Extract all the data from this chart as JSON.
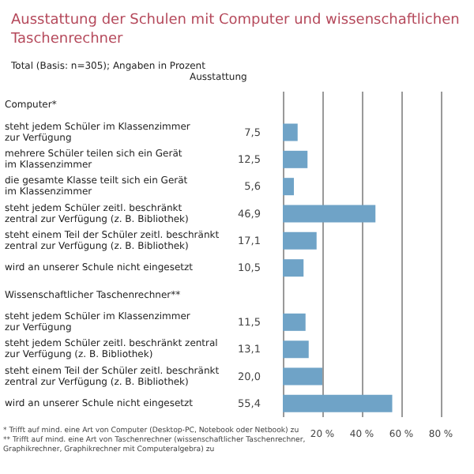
{
  "chart_data": {
    "type": "bar",
    "orientation": "horizontal",
    "title": "Ausstattung der Schulen mit Computer und wissenschaftlichen\nTaschenrechner",
    "subtitle": "Total (Basis: n=305); Angaben in Prozent",
    "categories": [
      "Computer*",
      "steht jedem Schüler im Klassenzimmer\nzur Verfügung",
      "mehrere Schüler teilen sich ein Gerät\nim Klassenzimmer",
      "die gesamte Klasse teilt sich ein Gerät\nim Klassenzimmer",
      "steht jedem Schüler zeitl. beschränkt\nzentral zur Verfügung (z. B. Bibliothek)",
      "steht einem Teil der Schüler zeitl. beschränkt\nzentral zur Verfügung (z. B. Bibliothek)",
      "wird an unserer Schule nicht eingesetzt",
      "Wissenschaftlicher Taschenrechner**",
      "steht jedem Schüler im Klassenzimmer\nzur Verfügung",
      "steht jedem Schüler zeitl. beschränkt zentral\nzur Verfügung (z. B. Bibliothek)",
      "steht einem Teil der Schüler zeitl. beschränkt\nzentral zur Verfügung (z. B. Bibliothek)",
      "wird an unserer Schule nicht eingesetzt"
    ],
    "values": [
      null,
      7.5,
      12.5,
      5.6,
      46.9,
      17.1,
      10.5,
      null,
      11.5,
      13.1,
      20.0,
      55.4
    ],
    "value_labels": [
      null,
      "7,5",
      "12,5",
      "5,6",
      "46,9",
      "17,1",
      "10,5",
      null,
      "11,5",
      "13,1",
      "20,0",
      "55,4"
    ],
    "color": "#6fa3c7",
    "xlim": [
      0,
      96
    ],
    "xticks": [
      {
        "value": 0,
        "label": null
      },
      {
        "value": 20,
        "label": "20 %"
      },
      {
        "value": 40,
        "label": "40 %"
      },
      {
        "value": 60,
        "label": "60 %"
      },
      {
        "value": 80,
        "label": "80 %"
      }
    ],
    "grid": "x",
    "annotations": [
      "Ausstattung",
      "* Trifft auf mind. eine Art von Computer (Desktop-PC, Notebook oder Netbook) zu\n** Trifft auf mind. eine Art von Taschenrechner (wissenschaftlicher Taschenrechner,\nGraphikrechner, Graphikrechner mit Computeralgebra) zu"
    ]
  }
}
